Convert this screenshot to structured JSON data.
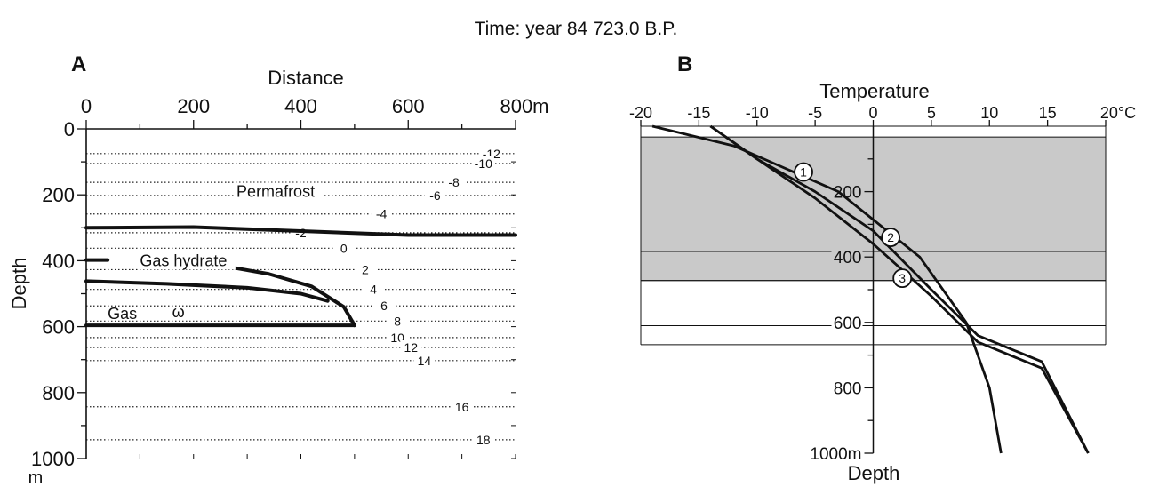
{
  "header": {
    "time_label": "Time: year 84 723.0  B.P."
  },
  "colors": {
    "ink": "#111111",
    "shade": "#c9c9c9",
    "contour": "#222222"
  },
  "chart_data": [
    {
      "panel": "A",
      "type": "line",
      "xlabel": "Distance",
      "ylabel": "Depth",
      "x_ticks": [
        "0",
        "200",
        "400",
        "600",
        "800m"
      ],
      "y_ticks": [
        "0",
        "200",
        "400",
        "600",
        "800",
        "1000"
      ],
      "y_unit": "m",
      "xlim": [
        0,
        800
      ],
      "ylim": [
        0,
        1000
      ],
      "region_labels": [
        {
          "text": "Permafrost",
          "x": 280,
          "y": 190
        },
        {
          "text": "Gas hydrate",
          "x": 100,
          "y": 400
        },
        {
          "text": "Gas",
          "x": 40,
          "y": 560
        },
        {
          "text": "ω",
          "x": 160,
          "y": 555
        }
      ],
      "isotherms": [
        {
          "label": "-12",
          "depth": 75,
          "label_x": 755
        },
        {
          "label": "-10",
          "depth": 105,
          "label_x": 740
        },
        {
          "label": "-8",
          "depth": 162,
          "label_x": 685
        },
        {
          "label": "-6",
          "depth": 202,
          "label_x": 650
        },
        {
          "label": "-4",
          "depth": 258,
          "label_x": 550
        },
        {
          "label": "-2",
          "depth": 315,
          "label_x": 400
        },
        {
          "label": "0",
          "depth": 362,
          "label_x": 480
        },
        {
          "label": "2",
          "depth": 427,
          "label_x": 520
        },
        {
          "label": "4",
          "depth": 487,
          "label_x": 535
        },
        {
          "label": "6",
          "depth": 537,
          "label_x": 555
        },
        {
          "label": "8",
          "depth": 583,
          "label_x": 580
        },
        {
          "label": "10",
          "depth": 633,
          "label_x": 580
        },
        {
          "label": "12",
          "depth": 663,
          "label_x": 605
        },
        {
          "label": "14",
          "depth": 703,
          "label_x": 630
        },
        {
          "label": "16",
          "depth": 843,
          "label_x": 700
        },
        {
          "label": "18",
          "depth": 943,
          "label_x": 740
        }
      ],
      "boundaries": [
        {
          "name": "permafrost base",
          "x": [
            0,
            200,
            400,
            600,
            800
          ],
          "y": [
            300,
            298,
            310,
            322,
            322
          ]
        },
        {
          "name": "hydrate top",
          "x": [
            0,
            40
          ],
          "y": [
            398,
            398
          ]
        },
        {
          "name": "hydrate top",
          "x": [
            270,
            340,
            420,
            480,
            500
          ],
          "y": [
            420,
            440,
            478,
            540,
            596
          ]
        },
        {
          "name": "hydrate base",
          "x": [
            0,
            150,
            300,
            400,
            450
          ],
          "y": [
            462,
            470,
            482,
            500,
            522
          ]
        },
        {
          "name": "gas base",
          "x": [
            0,
            500
          ],
          "y": [
            596,
            596
          ]
        }
      ]
    },
    {
      "panel": "B",
      "type": "line",
      "xlabel": "Temperature",
      "ylabel": "Depth",
      "x_ticks": [
        "-20",
        "-15",
        "-10",
        "-5",
        "0",
        "5",
        "10",
        "15",
        "20°C"
      ],
      "y_ticks": [
        "200",
        "400",
        "600",
        "800",
        "1000m"
      ],
      "xlim": [
        -20,
        20
      ],
      "ylim": [
        0,
        1000
      ],
      "shaded_depth_range": [
        33,
        472
      ],
      "horizontal_lines": [
        383,
        472,
        610,
        668
      ],
      "series": [
        {
          "name": "1",
          "x": [
            -19,
            -12,
            -3,
            4,
            8,
            10,
            11
          ],
          "y": [
            0,
            60,
            200,
            400,
            600,
            800,
            1000
          ]
        },
        {
          "name": "2",
          "x": [
            -14,
            -10,
            -5,
            0,
            5,
            9,
            14.5,
            16.5,
            18.5
          ],
          "y": [
            0,
            100,
            200,
            320,
            500,
            640,
            720,
            860,
            1000
          ]
        },
        {
          "name": "3",
          "x": [
            -14,
            -10,
            -5,
            0,
            5,
            9,
            14.5,
            16.5,
            18.5
          ],
          "y": [
            0,
            100,
            220,
            360,
            520,
            660,
            740,
            870,
            1000
          ]
        }
      ],
      "markers": [
        {
          "label": "1",
          "x": -6,
          "y": 140
        },
        {
          "label": "2",
          "x": 1.5,
          "y": 340
        },
        {
          "label": "3",
          "x": 2.5,
          "y": 465
        }
      ]
    }
  ]
}
